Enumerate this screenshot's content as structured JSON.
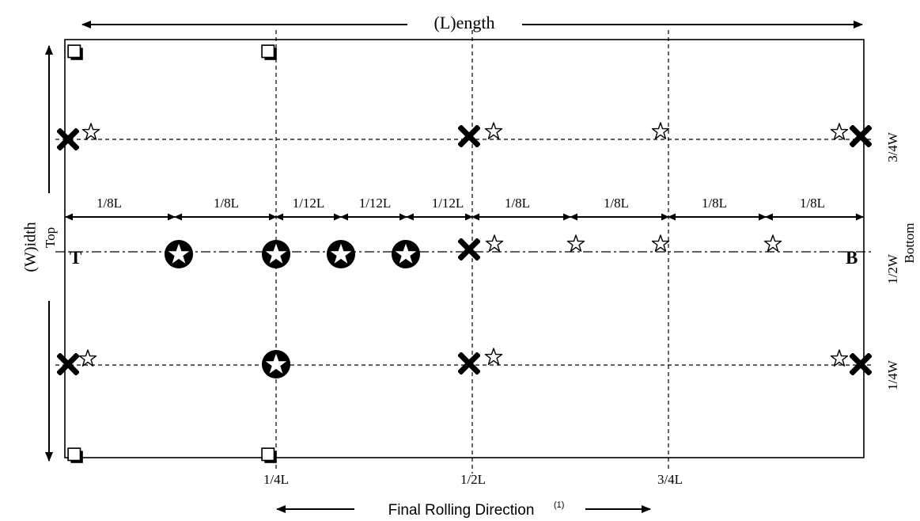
{
  "labels": {
    "length": "(L)ength",
    "width": "(W)idth",
    "top": "Top",
    "bottom": "Bottom",
    "top_letter": "T",
    "bottom_letter": "B",
    "three_quarter_w": "3/4W",
    "half_w": "1/2W",
    "quarter_w": "1/4W",
    "quarter_l": "1/4L",
    "half_l": "1/2L",
    "three_quarter_l": "3/4L",
    "final_rolling_direction": "Final Rolling Direction",
    "footnote": "(1)"
  },
  "segments": [
    "1/8L",
    "1/8L",
    "1/12L",
    "1/12L",
    "1/12L",
    "1/8L",
    "1/8L",
    "1/8L",
    "1/8L"
  ],
  "colors": {
    "line": "#000000",
    "background": "#ffffff"
  },
  "symbols": {
    "corner": "square-marker-icon",
    "cross": "x-marker-icon",
    "open_star": "open-star-icon",
    "filled_circle_star": "circled-star-icon"
  }
}
